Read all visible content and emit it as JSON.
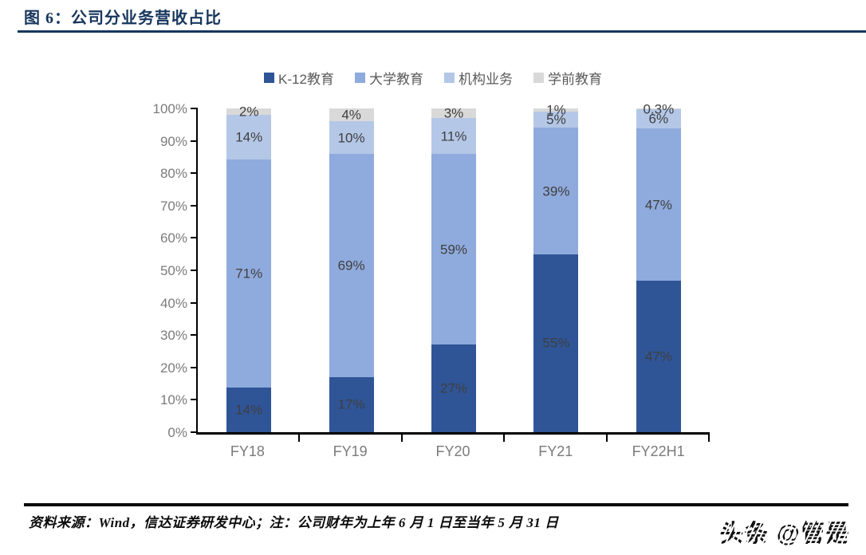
{
  "title": "图 6：公司分业务营收占比",
  "footer": {
    "source_note": "资料来源：Wind，信达证券研发中心；注：公司财年为上年 6 月 1 日至当年 5 月 31 日",
    "watermark": "头条 @管是"
  },
  "colors": {
    "title_navy": "#17365D",
    "axis_black": "#000000",
    "data_label_gray": "#3F3F3F",
    "tick_label_gray": "#7B7B7B",
    "legend_text_gray": "#595959"
  },
  "chart_data": {
    "type": "bar",
    "stacked": true,
    "title": "公司分业务营收占比",
    "categories": [
      "FY18",
      "FY19",
      "FY20",
      "FY21",
      "FY22H1"
    ],
    "series": [
      {
        "name": "K-12教育",
        "color": "#2F5597",
        "values": [
          14,
          17,
          27,
          55,
          47
        ],
        "labels": [
          "14%",
          "17%",
          "27%",
          "55%",
          "47%"
        ]
      },
      {
        "name": "大学教育",
        "color": "#8FAADC",
        "values": [
          71,
          69,
          59,
          39,
          47
        ],
        "labels": [
          "71%",
          "69%",
          "59%",
          "39%",
          "47%"
        ]
      },
      {
        "name": "机构业务",
        "color": "#B4C7E7",
        "values": [
          14,
          10,
          11,
          5,
          6
        ],
        "labels": [
          "14%",
          "10%",
          "11%",
          "5%",
          "6%"
        ]
      },
      {
        "name": "学前教育",
        "color": "#D9D9D9",
        "values": [
          2,
          4,
          3,
          1,
          0.3
        ],
        "labels": [
          "2%",
          "4%",
          "3%",
          "1%",
          "0.3%"
        ]
      }
    ],
    "xlabel": "",
    "ylabel": "",
    "ylim": [
      0,
      100
    ],
    "yticks": [
      "0%",
      "10%",
      "20%",
      "30%",
      "40%",
      "50%",
      "60%",
      "70%",
      "80%",
      "90%",
      "100%"
    ],
    "legend_position": "top",
    "grid": false
  }
}
